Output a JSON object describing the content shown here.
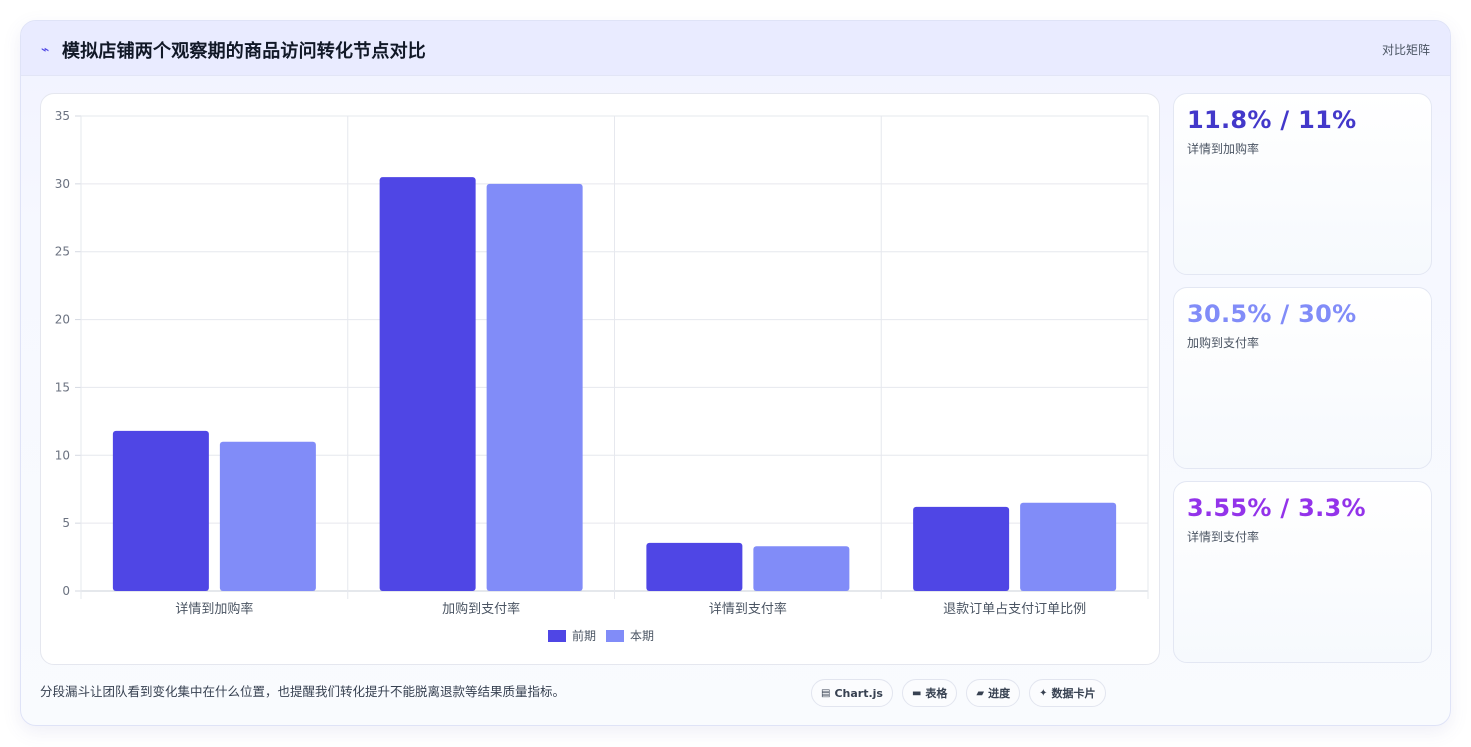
{
  "header": {
    "icon": "trend-line-icon",
    "title": "模拟店铺两个观察期的商品访问转化节点对比",
    "right_label": "对比矩阵"
  },
  "chart_data": {
    "type": "bar",
    "categories": [
      "详情到加购率",
      "加购到支付率",
      "详情到支付率",
      "退款订单占支付订单比例"
    ],
    "series": [
      {
        "name": "前期",
        "values": [
          11.8,
          30.5,
          3.55,
          6.2
        ],
        "color": "#4f46e5"
      },
      {
        "name": "本期",
        "values": [
          11,
          30,
          3.3,
          6.5
        ],
        "color": "#818cf8"
      }
    ],
    "ylim": [
      0,
      35
    ],
    "yticks": [
      0,
      5,
      10,
      15,
      20,
      25,
      30,
      35
    ],
    "grid": true,
    "legend": "bottom"
  },
  "stats": [
    {
      "value": "11.8% / 11%",
      "label": "详情到加购率",
      "color": "#4338ca"
    },
    {
      "value": "30.5% / 30%",
      "label": "加购到支付率",
      "color": "#818cf8"
    },
    {
      "value": "3.55% / 3.3%",
      "label": "详情到支付率",
      "color": "#9333ea"
    }
  ],
  "footer": {
    "note": "分段漏斗让团队看到变化集中在什么位置，也提醒我们转化提升不能脱离退款等结果质量指标。",
    "tags": [
      {
        "icon": "chart-icon",
        "glyph": "▤",
        "label": "Chart.js"
      },
      {
        "icon": "table-icon",
        "glyph": "▬",
        "label": "表格"
      },
      {
        "icon": "progress-icon",
        "glyph": "▰",
        "label": "进度"
      },
      {
        "icon": "sparkle-icon",
        "glyph": "✦",
        "label": "数据卡片"
      }
    ]
  }
}
